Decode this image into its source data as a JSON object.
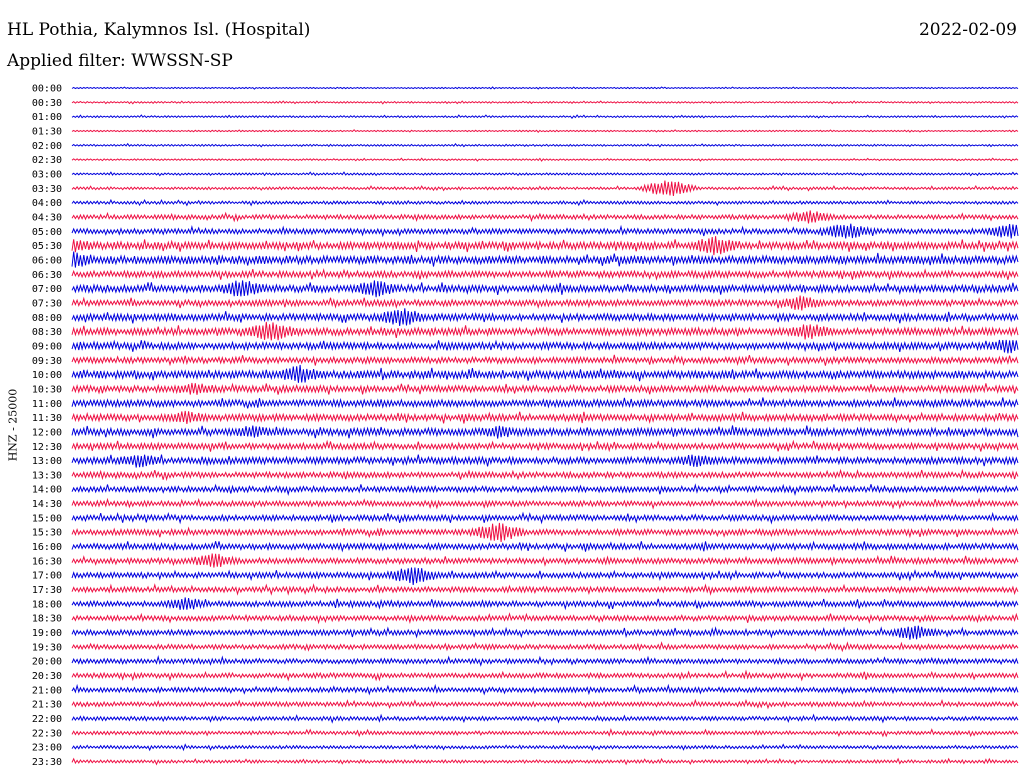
{
  "header": {
    "station": "HL Pothia, Kalymnos Isl. (Hospital)",
    "date": "2022-02-09",
    "filter": "Applied filter: WWSSN-SP"
  },
  "chart_data": {
    "type": "helicorder",
    "ylabel": "HNZ - 25000",
    "channel": "HNZ",
    "gain": 25000,
    "colors": [
      "#0000dd",
      "#ee1144"
    ],
    "rows": [
      "00:00",
      "00:30",
      "01:00",
      "01:30",
      "02:00",
      "02:30",
      "03:00",
      "03:30",
      "04:00",
      "04:30",
      "05:00",
      "05:30",
      "06:00",
      "06:30",
      "07:00",
      "07:30",
      "08:00",
      "08:30",
      "09:00",
      "09:30",
      "10:00",
      "10:30",
      "11:00",
      "11:30",
      "12:00",
      "12:30",
      "13:00",
      "13:30",
      "14:00",
      "14:30",
      "15:00",
      "15:30",
      "16:00",
      "16:30",
      "17:00",
      "17:30",
      "18:00",
      "18:30",
      "19:00",
      "19:30",
      "20:00",
      "20:30",
      "21:00",
      "21:30",
      "22:00",
      "22:30",
      "23:00",
      "23:30"
    ],
    "noise_level": [
      0.6,
      0.8,
      0.9,
      0.7,
      0.9,
      0.8,
      1.0,
      1.3,
      1.5,
      2.2,
      2.6,
      3.6,
      4.0,
      3.2,
      3.6,
      3.0,
      3.4,
      3.6,
      3.4,
      3.0,
      3.8,
      3.2,
      3.4,
      3.4,
      3.6,
      3.0,
      3.4,
      2.8,
      2.8,
      2.6,
      2.8,
      2.8,
      3.0,
      2.8,
      2.8,
      2.6,
      2.8,
      2.6,
      2.6,
      2.4,
      2.4,
      2.4,
      2.4,
      2.2,
      2.0,
      1.8,
      1.6,
      1.5
    ],
    "events": [
      {
        "row": 7,
        "t": 0.63,
        "amp": 9
      },
      {
        "row": 9,
        "t": 0.78,
        "amp": 7
      },
      {
        "row": 10,
        "t": 0.82,
        "amp": 9
      },
      {
        "row": 10,
        "t": 0.99,
        "amp": 8
      },
      {
        "row": 11,
        "t": 0.0,
        "amp": 8
      },
      {
        "row": 11,
        "t": 0.68,
        "amp": 10
      },
      {
        "row": 12,
        "t": 0.0,
        "amp": 9
      },
      {
        "row": 14,
        "t": 0.18,
        "amp": 10
      },
      {
        "row": 14,
        "t": 0.32,
        "amp": 9
      },
      {
        "row": 15,
        "t": 0.77,
        "amp": 8
      },
      {
        "row": 16,
        "t": 0.35,
        "amp": 10
      },
      {
        "row": 17,
        "t": 0.21,
        "amp": 11
      },
      {
        "row": 17,
        "t": 0.78,
        "amp": 9
      },
      {
        "row": 18,
        "t": 0.99,
        "amp": 8
      },
      {
        "row": 20,
        "t": 0.24,
        "amp": 10
      },
      {
        "row": 21,
        "t": 0.13,
        "amp": 7
      },
      {
        "row": 23,
        "t": 0.12,
        "amp": 7
      },
      {
        "row": 24,
        "t": 0.19,
        "amp": 7
      },
      {
        "row": 24,
        "t": 0.45,
        "amp": 7
      },
      {
        "row": 26,
        "t": 0.07,
        "amp": 8
      },
      {
        "row": 26,
        "t": 0.66,
        "amp": 7
      },
      {
        "row": 31,
        "t": 0.45,
        "amp": 11
      },
      {
        "row": 33,
        "t": 0.15,
        "amp": 8
      },
      {
        "row": 34,
        "t": 0.36,
        "amp": 10
      },
      {
        "row": 36,
        "t": 0.12,
        "amp": 7
      },
      {
        "row": 38,
        "t": 0.89,
        "amp": 8
      }
    ]
  }
}
